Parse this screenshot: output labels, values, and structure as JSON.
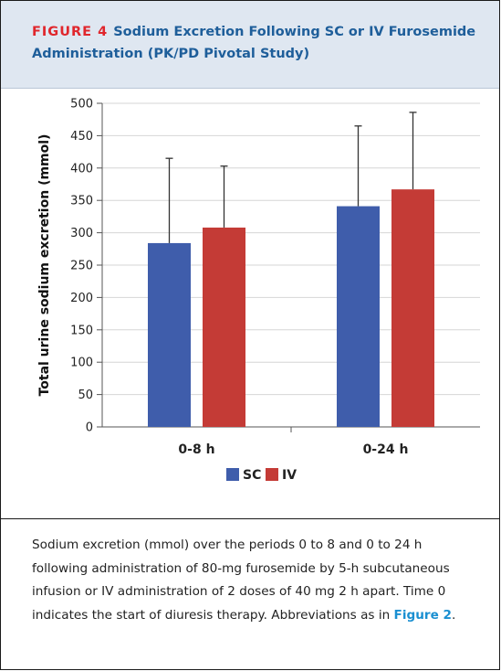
{
  "figure": {
    "label": "FIGURE 4",
    "title": "Sodium Excretion Following SC or IV Furosemide Administration (PK/PD Pivotal Study)"
  },
  "chart_data": {
    "type": "bar",
    "categories": [
      "0-8 h",
      "0-24 h"
    ],
    "series": [
      {
        "name": "SC",
        "values": [
          284,
          341
        ],
        "error_upper": [
          415,
          465
        ],
        "color": "#3f5dab"
      },
      {
        "name": "IV",
        "values": [
          308,
          367
        ],
        "error_upper": [
          403,
          486
        ],
        "color": "#c43b36"
      }
    ],
    "ylabel": "Total urine sodium excretion (mmol)",
    "xlabel": "",
    "ylim": [
      0,
      500
    ],
    "yticks": [
      0,
      50,
      100,
      150,
      200,
      250,
      300,
      350,
      400,
      450,
      500
    ],
    "grid": true,
    "legend": "bottom-center"
  },
  "caption": {
    "text": "Sodium excretion (mmol) over the periods 0 to 8 and 0 to 24 h following administration of 80-mg furosemide by 5-h subcutaneous infusion or IV administration of 2 doses of 40 mg 2 h apart. Time 0 indicates the start of diuresis therapy. Abbreviations as in ",
    "link": "Figure 2",
    "end": "."
  }
}
